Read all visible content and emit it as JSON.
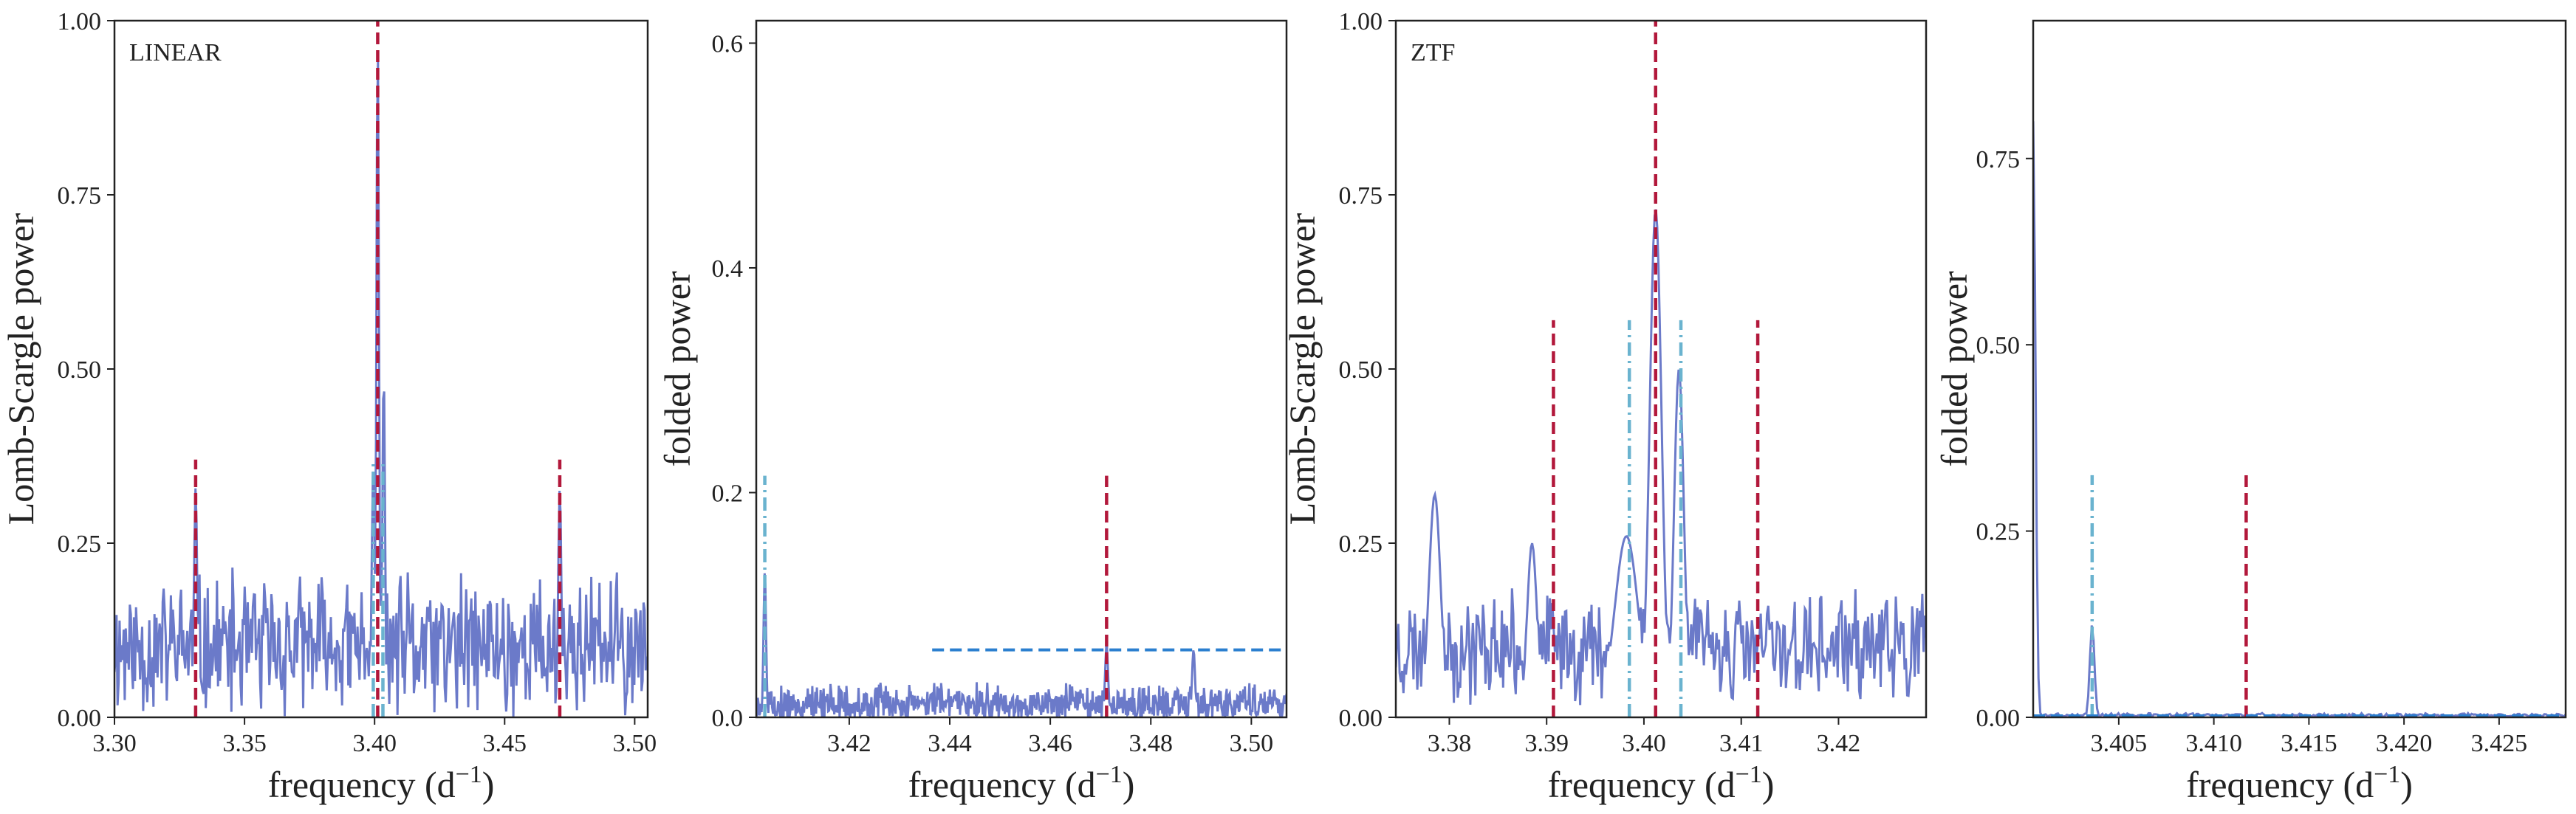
{
  "figure": {
    "colors": {
      "periodogram": "#6b7ac9",
      "true_line": "#b2183b",
      "alias_line": "#6ab3cf",
      "threshold": "#2b7fcf",
      "frame": "#222222"
    }
  },
  "chart_data": [
    {
      "type": "line",
      "panel_label": "LINEAR",
      "xlabel": "frequency (d",
      "xlabel_sup": "−1",
      "xlabel_close": ")",
      "ylabel": "Lomb-Scargle power",
      "xlim": [
        3.3,
        3.505
      ],
      "ylim": [
        0,
        1.0
      ],
      "xticks": [
        3.3,
        3.35,
        3.4,
        3.45,
        3.5
      ],
      "xtick_labels": [
        "3.30",
        "3.35",
        "3.40",
        "3.45",
        "3.50"
      ],
      "yticks": [
        0,
        0.25,
        0.5,
        0.75,
        1.0
      ],
      "ytick_labels": [
        "0.00",
        "0.25",
        "0.50",
        "0.75",
        "1.00"
      ],
      "grid": false,
      "noise": {
        "base": 0.1,
        "amp": 0.12,
        "n": 520,
        "seed": 11,
        "maxv": 0.38
      },
      "peaks": [
        {
          "x": 3.3312,
          "y": 0.33,
          "w": 0.0006
        },
        {
          "x": 3.3995,
          "y": 0.36,
          "w": 0.0006
        },
        {
          "x": 3.4012,
          "y": 0.97,
          "w": 0.0005
        },
        {
          "x": 3.4035,
          "y": 0.5,
          "w": 0.0005
        },
        {
          "x": 3.4712,
          "y": 0.33,
          "w": 0.0006
        }
      ],
      "vlines": [
        {
          "x": 3.4012,
          "y0": 0,
          "y1": 1.0,
          "style": "true"
        },
        {
          "x": 3.3312,
          "y0": 0,
          "y1": 0.37,
          "style": "true"
        },
        {
          "x": 3.4712,
          "y0": 0,
          "y1": 0.37,
          "style": "true"
        },
        {
          "x": 3.3995,
          "y0": 0,
          "y1": 0.37,
          "style": "alias"
        },
        {
          "x": 3.4032,
          "y0": 0,
          "y1": 0.37,
          "style": "alias"
        }
      ],
      "hlines": []
    },
    {
      "type": "line",
      "panel_label": "",
      "xlabel": "frequency (d",
      "xlabel_sup": "−1",
      "xlabel_close": ")",
      "ylabel": "folded power",
      "xlim": [
        3.4015,
        3.507
      ],
      "ylim": [
        0,
        0.62
      ],
      "xticks": [
        3.42,
        3.44,
        3.46,
        3.48,
        3.5
      ],
      "xtick_labels": [
        "3.42",
        "3.44",
        "3.46",
        "3.48",
        "3.50"
      ],
      "yticks": [
        0,
        0.2,
        0.4,
        0.6
      ],
      "ytick_labels": [
        "0.0",
        "0.2",
        "0.4",
        "0.6"
      ],
      "grid": false,
      "noise": {
        "base": 0.012,
        "amp": 0.02,
        "n": 700,
        "seed": 5,
        "maxv": 0.06
      },
      "peaks": [
        {
          "x": 3.4032,
          "y": 0.13,
          "w": 0.00025
        },
        {
          "x": 3.4712,
          "y": 0.065,
          "w": 0.0003
        },
        {
          "x": 3.4885,
          "y": 0.06,
          "w": 0.0003
        }
      ],
      "vlines": [
        {
          "x": 3.4032,
          "y0": 0,
          "y1": 0.215,
          "style": "alias"
        },
        {
          "x": 3.4712,
          "y0": 0,
          "y1": 0.215,
          "style": "true"
        }
      ],
      "hlines": [
        {
          "y": 0.06,
          "x0": 3.4365,
          "x1": 3.507,
          "style": "threshold"
        }
      ]
    },
    {
      "type": "line",
      "panel_label": "ZTF",
      "xlabel": "frequency (d",
      "xlabel_sup": "−1",
      "xlabel_close": ")",
      "ylabel": "Lomb-Scargle power",
      "xlim": [
        3.3745,
        3.429
      ],
      "ylim": [
        0,
        1.0
      ],
      "xticks": [
        3.38,
        3.39,
        3.4,
        3.41,
        3.42
      ],
      "xtick_labels": [
        "3.38",
        "3.39",
        "3.40",
        "3.41",
        "3.42"
      ],
      "yticks": [
        0,
        0.25,
        0.5,
        0.75,
        1.0
      ],
      "ytick_labels": [
        "0.00",
        "0.25",
        "0.50",
        "0.75",
        "1.00"
      ],
      "grid": false,
      "noise": {
        "base": 0.1,
        "amp": 0.09,
        "n": 420,
        "seed": 23,
        "maxv": 0.22
      },
      "peaks": [
        {
          "x": 3.3785,
          "y": 0.32,
          "w": 0.0006
        },
        {
          "x": 3.3885,
          "y": 0.25,
          "w": 0.0005
        },
        {
          "x": 3.3982,
          "y": 0.26,
          "w": 0.0012
        },
        {
          "x": 3.4012,
          "y": 0.73,
          "w": 0.0006
        },
        {
          "x": 3.4036,
          "y": 0.5,
          "w": 0.0005
        }
      ],
      "vlines": [
        {
          "x": 3.4012,
          "y0": 0,
          "y1": 1.0,
          "style": "true"
        },
        {
          "x": 3.3907,
          "y0": 0,
          "y1": 0.57,
          "style": "true"
        },
        {
          "x": 3.4117,
          "y0": 0,
          "y1": 0.57,
          "style": "true"
        },
        {
          "x": 3.3985,
          "y0": 0,
          "y1": 0.57,
          "style": "alias"
        },
        {
          "x": 3.4038,
          "y0": 0,
          "y1": 0.57,
          "style": "alias"
        }
      ],
      "hlines": []
    },
    {
      "type": "line",
      "panel_label": "",
      "xlabel": "frequency (d",
      "xlabel_sup": "−1",
      "xlabel_close": ")",
      "ylabel": "folded power",
      "xlim": [
        3.4005,
        3.4285
      ],
      "ylim": [
        0,
        0.935
      ],
      "xticks": [
        3.405,
        3.41,
        3.415,
        3.42,
        3.425
      ],
      "xtick_labels": [
        "3.405",
        "3.410",
        "3.415",
        "3.420",
        "3.425"
      ],
      "yticks": [
        0,
        0.25,
        0.5,
        0.75
      ],
      "ytick_labels": [
        "0.00",
        "0.25",
        "0.50",
        "0.75"
      ],
      "grid": false,
      "noise": {
        "base": 0.003,
        "amp": 0.003,
        "n": 300,
        "seed": 3,
        "maxv": 0.008
      },
      "peaks": [
        {
          "x": 3.4005,
          "y": 0.8,
          "w": 0.00012
        },
        {
          "x": 3.4036,
          "y": 0.125,
          "w": 0.00012
        }
      ],
      "vlines": [
        {
          "x": 3.4036,
          "y0": 0,
          "y1": 0.325,
          "style": "alias"
        },
        {
          "x": 3.4117,
          "y0": 0,
          "y1": 0.325,
          "style": "true"
        }
      ],
      "hlines": [
        {
          "y": 0.002,
          "x0": 3.4005,
          "x1": 3.4285,
          "style": "threshold"
        }
      ]
    }
  ]
}
